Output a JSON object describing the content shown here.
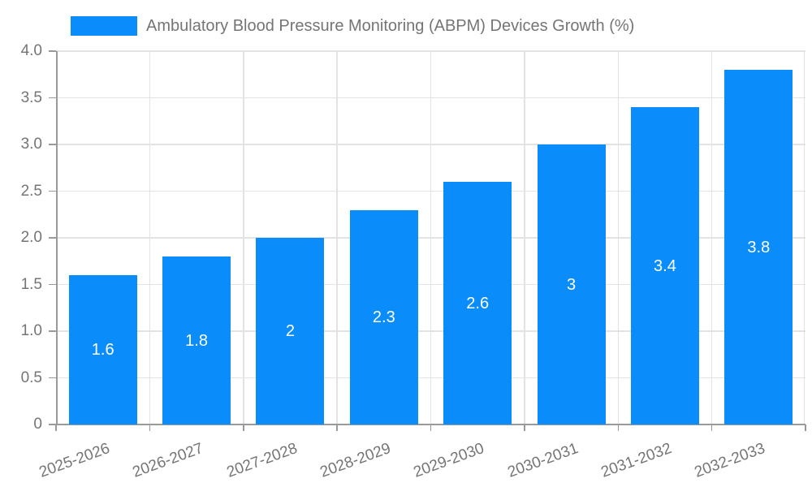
{
  "chart_data": {
    "type": "bar",
    "title": "Ambulatory Blood Pressure Monitoring (ABPM) Devices Growth (%)",
    "legend": {
      "position": "top-left",
      "entries": [
        "Ambulatory Blood Pressure Monitoring (ABPM) Devices Growth (%)"
      ]
    },
    "categories": [
      "2025-2026",
      "2026-2027",
      "2027-2028",
      "2028-2029",
      "2029-2030",
      "2030-2031",
      "2031-2032",
      "2032-2033"
    ],
    "values": [
      1.6,
      1.8,
      2,
      2.3,
      2.6,
      3,
      3.4,
      3.8
    ],
    "value_labels": [
      "1.6",
      "1.8",
      "2",
      "2.3",
      "2.6",
      "3",
      "3.4",
      "3.8"
    ],
    "xlabel": "",
    "ylabel": "",
    "ylim": [
      0,
      4
    ],
    "ytick_step": 0.5,
    "ytick_labels": [
      "0",
      "0.5",
      "1.0",
      "1.5",
      "2.0",
      "2.5",
      "3.0",
      "3.5",
      "4.0"
    ],
    "grid": "both",
    "x_label_rotation_deg": -20,
    "colors": {
      "bar": "#0a8dfa",
      "value_label": "#ffffff",
      "axis_text": "#757575",
      "grid_line": "#e3e3e3",
      "axis_line": "#9a9a9a"
    }
  }
}
